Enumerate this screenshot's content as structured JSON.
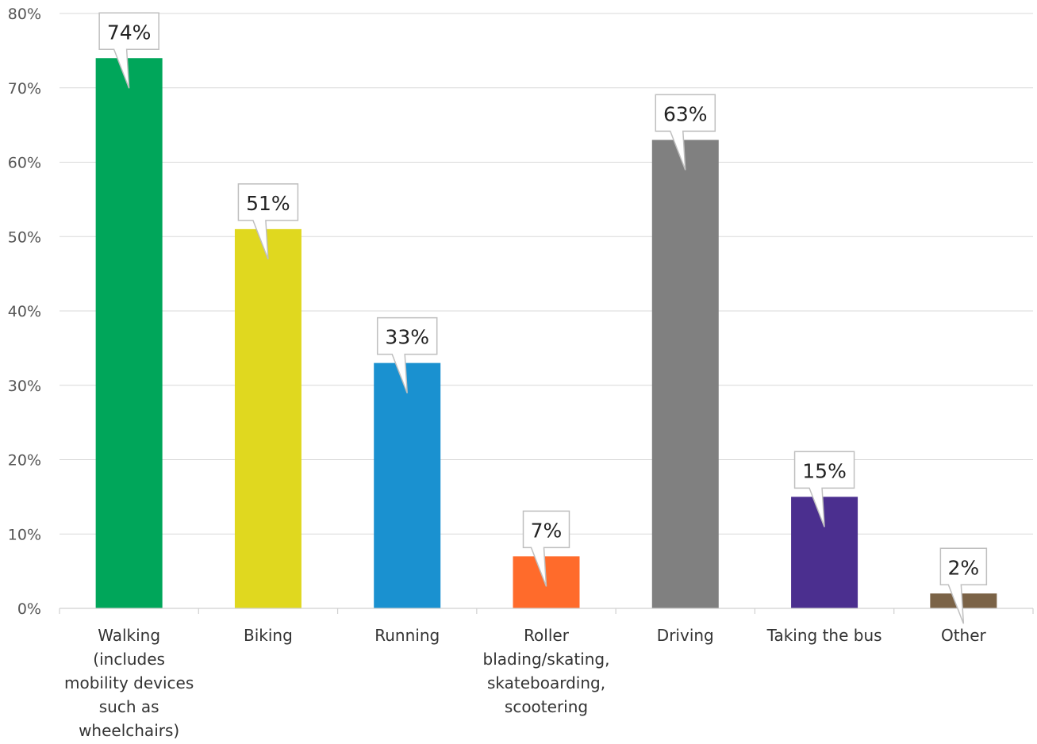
{
  "chart_data": {
    "type": "bar",
    "title": "",
    "xlabel": "",
    "ylabel": "",
    "ylim": [
      0,
      80
    ],
    "y_ticks": [
      0,
      10,
      20,
      30,
      40,
      50,
      60,
      70,
      80
    ],
    "y_tick_labels": [
      "0%",
      "10%",
      "20%",
      "30%",
      "40%",
      "50%",
      "60%",
      "70%",
      "80%"
    ],
    "grid": true,
    "legend": "none",
    "categories": [
      "Walking (includes mobility devices such as wheelchairs)",
      "Biking",
      "Running",
      "Roller blading/skating, skateboarding, scootering",
      "Driving",
      "Taking the bus",
      "Other"
    ],
    "category_label_lines": [
      [
        "Walking",
        "(includes",
        "mobility devices",
        "such as",
        "wheelchairs)"
      ],
      [
        "Biking"
      ],
      [
        "Running"
      ],
      [
        "Roller",
        "blading/skating,",
        "skateboarding,",
        "scootering"
      ],
      [
        "Driving"
      ],
      [
        "Taking the bus"
      ],
      [
        "Other"
      ]
    ],
    "values": [
      74,
      51,
      33,
      7,
      63,
      15,
      2
    ],
    "data_labels": [
      "74%",
      "51%",
      "33%",
      "7%",
      "63%",
      "15%",
      "2%"
    ],
    "colors": [
      "#00a65a",
      "#e0d81f",
      "#1a91d0",
      "#ff6b2b",
      "#808080",
      "#4b2f8f",
      "#7b6347"
    ]
  }
}
